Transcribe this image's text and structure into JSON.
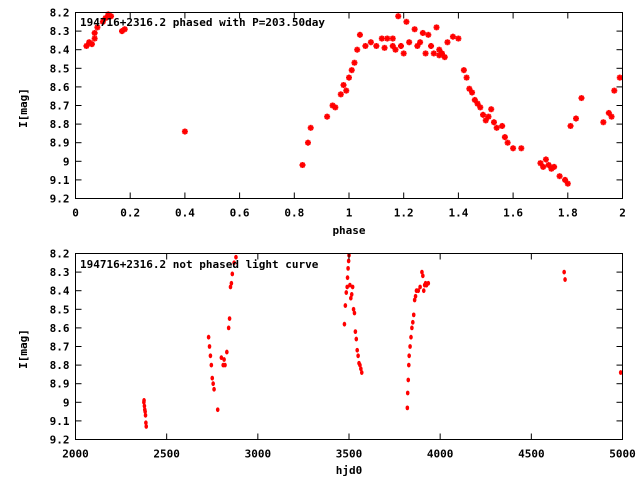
{
  "colors": {
    "points": "#ff0000",
    "frame": "#000000",
    "background": "#ffffff"
  },
  "chart_data": [
    {
      "type": "scatter",
      "title": "194716+2316.2 phased with P=203.50day",
      "xlabel": "phase",
      "ylabel": "I[mag]",
      "xlim": [
        0,
        2
      ],
      "ylim": [
        8.2,
        9.2
      ],
      "y_inverted": true,
      "grid": false,
      "marker": "star",
      "xticks": [
        "0",
        "0.2",
        "0.4",
        "0.6",
        "0.8",
        "1",
        "1.2",
        "1.4",
        "1.6",
        "1.8",
        "2"
      ],
      "yticks": [
        "8.2",
        "8.3",
        "8.4",
        "8.5",
        "8.6",
        "8.7",
        "8.8",
        "8.9",
        "9",
        "9.1",
        "9.2"
      ],
      "series": [
        {
          "x": [
            0.04,
            0.05,
            0.06,
            0.07,
            0.07,
            0.08,
            0.1,
            0.11,
            0.12,
            0.13,
            0.17,
            0.18,
            0.4,
            0.83,
            0.85,
            0.86,
            0.92,
            0.94,
            0.95,
            0.97,
            0.98,
            0.99,
            1.0,
            1.01,
            1.02,
            1.03,
            1.04,
            1.06,
            1.08,
            1.1,
            1.12,
            1.13,
            1.14,
            1.16,
            1.16,
            1.17,
            1.18,
            1.19,
            1.2,
            1.21,
            1.22,
            1.24,
            1.25,
            1.26,
            1.27,
            1.28,
            1.29,
            1.3,
            1.31,
            1.32,
            1.33,
            1.33,
            1.34,
            1.35,
            1.36,
            1.38,
            1.4,
            1.42,
            1.43,
            1.44,
            1.45,
            1.46,
            1.47,
            1.48,
            1.49,
            1.5,
            1.51,
            1.52,
            1.53,
            1.54,
            1.56,
            1.57,
            1.58,
            1.6,
            1.63,
            1.7,
            1.71,
            1.72,
            1.73,
            1.74,
            1.75,
            1.77,
            1.79,
            1.8,
            1.81,
            1.83,
            1.85,
            1.93,
            1.95,
            1.96,
            1.97,
            1.99
          ],
          "y": [
            8.38,
            8.36,
            8.37,
            8.34,
            8.31,
            8.28,
            8.25,
            8.23,
            8.21,
            8.22,
            8.3,
            8.29,
            8.84,
            9.02,
            8.9,
            8.82,
            8.76,
            8.7,
            8.71,
            8.64,
            8.59,
            8.62,
            8.55,
            8.51,
            8.47,
            8.4,
            8.32,
            8.38,
            8.36,
            8.38,
            8.34,
            8.39,
            8.34,
            8.38,
            8.34,
            8.4,
            8.22,
            8.38,
            8.42,
            8.25,
            8.36,
            8.29,
            8.38,
            8.36,
            8.31,
            8.42,
            8.32,
            8.38,
            8.42,
            8.28,
            8.4,
            8.43,
            8.42,
            8.44,
            8.36,
            8.33,
            8.34,
            8.51,
            8.55,
            8.61,
            8.63,
            8.67,
            8.69,
            8.71,
            8.75,
            8.78,
            8.76,
            8.72,
            8.79,
            8.82,
            8.81,
            8.87,
            8.9,
            8.93,
            8.93,
            9.01,
            9.03,
            8.99,
            9.02,
            9.04,
            9.03,
            9.08,
            9.1,
            9.12,
            8.81,
            8.77,
            8.66,
            8.79,
            8.74,
            8.76,
            8.62,
            8.55
          ]
        }
      ]
    },
    {
      "type": "scatter",
      "title": "194716+2316.2 not phased light curve",
      "xlabel": "hjd0",
      "ylabel": "I[mag]",
      "xlim": [
        2000,
        5000
      ],
      "ylim": [
        8.2,
        9.2
      ],
      "y_inverted": true,
      "grid": false,
      "marker": "dot",
      "xticks": [
        "2000",
        "2500",
        "3000",
        "3500",
        "4000",
        "4500",
        "5000"
      ],
      "yticks": [
        "8.2",
        "8.3",
        "8.4",
        "8.5",
        "8.6",
        "8.7",
        "8.8",
        "8.9",
        "9",
        "9.1",
        "9.2"
      ],
      "series": [
        {
          "x": [
            2375,
            2376,
            2378,
            2380,
            2382,
            2384,
            2386,
            2388,
            2730,
            2735,
            2740,
            2745,
            2750,
            2755,
            2760,
            2780,
            2800,
            2810,
            2815,
            2820,
            2830,
            2840,
            2845,
            2850,
            2855,
            2860,
            2870,
            2880,
            3475,
            3480,
            3485,
            3490,
            3492,
            3495,
            3498,
            3500,
            3505,
            3510,
            3515,
            3520,
            3525,
            3530,
            3535,
            3540,
            3545,
            3550,
            3555,
            3560,
            3565,
            3570,
            3820,
            3822,
            3825,
            3828,
            3830,
            3835,
            3840,
            3845,
            3850,
            3855,
            3860,
            3865,
            3870,
            3880,
            3890,
            3900,
            3905,
            3910,
            3915,
            3920,
            3925,
            3935,
            4680,
            4685,
            4990
          ],
          "y": [
            9.0,
            8.99,
            9.02,
            9.04,
            9.05,
            9.07,
            9.11,
            9.13,
            8.65,
            8.7,
            8.75,
            8.8,
            8.87,
            8.9,
            8.93,
            9.04,
            8.76,
            8.8,
            8.77,
            8.8,
            8.73,
            8.6,
            8.55,
            8.38,
            8.36,
            8.31,
            8.25,
            8.22,
            8.58,
            8.48,
            8.41,
            8.38,
            8.33,
            8.28,
            8.24,
            8.21,
            8.37,
            8.44,
            8.42,
            8.38,
            8.5,
            8.52,
            8.62,
            8.66,
            8.72,
            8.75,
            8.79,
            8.8,
            8.82,
            8.84,
            9.03,
            8.95,
            8.88,
            8.8,
            8.75,
            8.7,
            8.65,
            8.6,
            8.57,
            8.53,
            8.45,
            8.43,
            8.4,
            8.4,
            8.38,
            8.3,
            8.32,
            8.4,
            8.37,
            8.36,
            8.37,
            8.36,
            8.3,
            8.34,
            8.84
          ]
        }
      ]
    }
  ]
}
